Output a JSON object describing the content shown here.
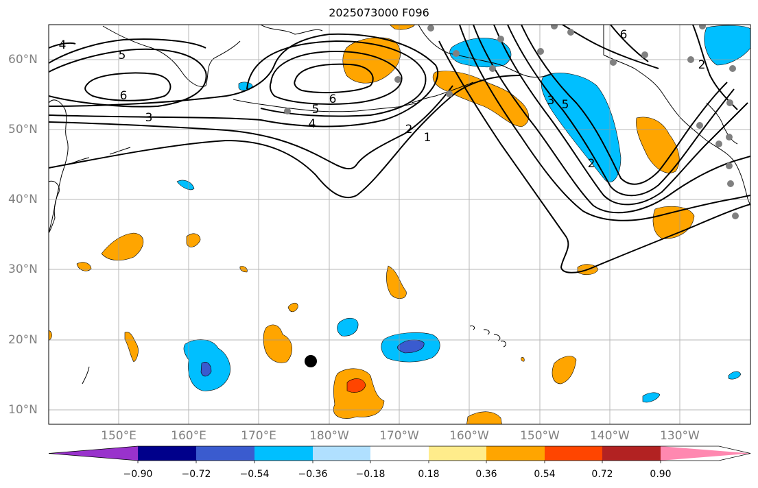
{
  "title": "2025073000 F096",
  "lat_labels": [
    "60°N",
    "50°N",
    "40°N",
    "30°N",
    "20°N",
    "10°N"
  ],
  "lon_labels": [
    "150°E",
    "160°E",
    "170°E",
    "180°W",
    "170°W",
    "160°W",
    "150°W",
    "140°W",
    "130°W"
  ],
  "contour_labels": [
    "4",
    "5",
    "6",
    "3",
    "6",
    "5",
    "4",
    "2",
    "1",
    "6",
    "3",
    "5",
    "2",
    "2"
  ],
  "colorbar": {
    "ticks": [
      "−0.90",
      "−0.72",
      "−0.54",
      "−0.36",
      "−0.18",
      "0.18",
      "0.36",
      "0.54",
      "0.72",
      "0.90"
    ],
    "colors": [
      "#9932CC",
      "#00008B",
      "#3A5BCF",
      "#00BFFF",
      "#B0E0FF",
      "#FFFFFF",
      "#FFEC8B",
      "#FFA500",
      "#FF4500",
      "#B22222",
      "#FF88B0"
    ]
  }
}
